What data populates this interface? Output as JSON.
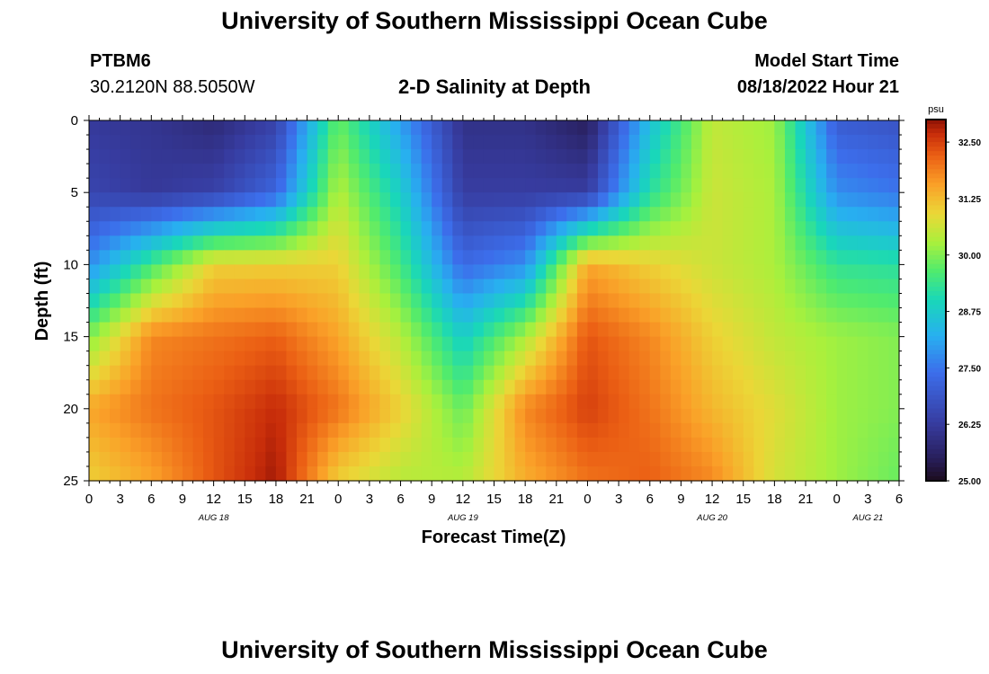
{
  "header": {
    "title": "University of Southern Mississippi Ocean Cube",
    "station_id": "PTBM6",
    "station_coords": "30.2120N  88.5050W",
    "plot_title": "2-D Salinity at Depth",
    "model_start_label": "Model Start Time",
    "model_start_value": "08/18/2022 Hour 21"
  },
  "footer": {
    "title": "University of Southern Mississippi Ocean Cube"
  },
  "chart_data": {
    "type": "heatmap",
    "title": "2-D Salinity at Depth",
    "xlabel": "Forecast Time(Z)",
    "ylabel": "Depth (ft)",
    "x_tick_labels": [
      "0",
      "3",
      "6",
      "9",
      "12",
      "15",
      "18",
      "21",
      "0",
      "3",
      "6",
      "9",
      "12",
      "15",
      "18",
      "21",
      "0",
      "3",
      "6",
      "9",
      "12",
      "15",
      "18",
      "21",
      "0",
      "3",
      "6"
    ],
    "x_range_hours": [
      0,
      78
    ],
    "day_labels": [
      {
        "label": "AUG 18",
        "hour": 12
      },
      {
        "label": "AUG 19",
        "hour": 36
      },
      {
        "label": "AUG 20",
        "hour": 60
      },
      {
        "label": "AUG 21",
        "hour": 75
      }
    ],
    "y_tick_labels": [
      "0",
      "5",
      "10",
      "15",
      "20",
      "25"
    ],
    "y_range_ft": [
      0,
      25
    ],
    "y_inverted": true,
    "colorbar": {
      "unit": "psu",
      "range": [
        25.0,
        33.0
      ],
      "tick_labels": [
        "32.50",
        "31.25",
        "30.00",
        "28.75",
        "27.50",
        "26.25",
        "25.00"
      ],
      "tick_values": [
        32.5,
        31.25,
        30.0,
        28.75,
        27.5,
        26.25,
        25.0
      ]
    },
    "salinity_psu": {
      "depths_ft": [
        0,
        5,
        10,
        15,
        20,
        25
      ],
      "hours": [
        0,
        6,
        12,
        18,
        24,
        30,
        36,
        42,
        48,
        54,
        60,
        66,
        72,
        78
      ],
      "values": [
        [
          26.2,
          26.1,
          25.8,
          26.4,
          29.8,
          28.0,
          26.0,
          26.0,
          25.5,
          28.5,
          30.5,
          30.2,
          27.0,
          26.8
        ],
        [
          26.5,
          26.2,
          26.4,
          27.2,
          30.4,
          28.8,
          26.3,
          26.3,
          26.3,
          29.2,
          30.6,
          30.3,
          27.8,
          27.5
        ],
        [
          27.8,
          29.5,
          31.0,
          31.0,
          31.0,
          29.5,
          27.3,
          27.8,
          31.5,
          31.0,
          30.6,
          30.3,
          29.3,
          29.2
        ],
        [
          30.0,
          31.8,
          32.0,
          32.2,
          31.5,
          30.4,
          28.8,
          30.3,
          32.3,
          31.8,
          31.0,
          30.5,
          30.2,
          30.0
        ],
        [
          31.5,
          32.0,
          32.3,
          32.7,
          32.0,
          31.0,
          29.8,
          31.8,
          32.5,
          32.0,
          31.3,
          30.8,
          30.2,
          30.0
        ],
        [
          31.0,
          31.5,
          32.3,
          32.9,
          31.0,
          30.4,
          30.4,
          31.4,
          32.0,
          32.2,
          31.8,
          30.7,
          30.2,
          29.8
        ]
      ]
    },
    "grid": false,
    "legend": "colorbar-right"
  }
}
